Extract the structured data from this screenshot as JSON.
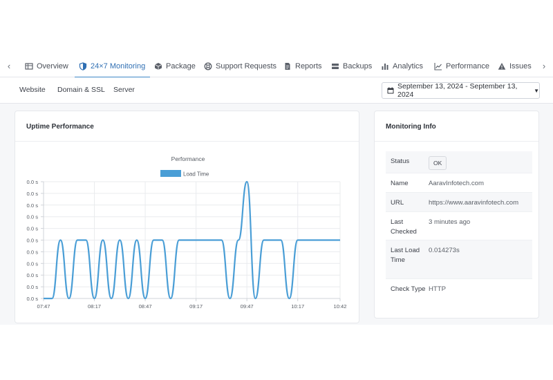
{
  "tabs": [
    {
      "label": "Overview",
      "icon": "grid-table-icon"
    },
    {
      "label": "24×7 Monitoring",
      "icon": "shield-icon",
      "active": true
    },
    {
      "label": "Package",
      "icon": "box-icon"
    },
    {
      "label": "Support Requests",
      "icon": "lifebuoy-icon"
    },
    {
      "label": "Reports",
      "icon": "document-icon"
    },
    {
      "label": "Backups",
      "icon": "drives-icon"
    },
    {
      "label": "Analytics",
      "icon": "bar-chart-icon"
    },
    {
      "label": "Performance",
      "icon": "line-chart-icon"
    },
    {
      "label": "Issues",
      "icon": "warning-icon"
    }
  ],
  "subnav": {
    "items": [
      "Website",
      "Domain & SSL",
      "Server"
    ],
    "date_range": "September 13, 2024 - September 13, 2024"
  },
  "uptime_card": {
    "title": "Uptime Performance"
  },
  "info_card": {
    "title": "Monitoring Info",
    "rows": [
      {
        "label": "Status",
        "value": "OK"
      },
      {
        "label": "Name",
        "value": "AaravInfotech.com"
      },
      {
        "label": "URL",
        "value": "https://www.aaravinfotech.com"
      },
      {
        "label": "Last Checked",
        "value": "3 minutes ago"
      },
      {
        "label": "Last Load Time",
        "value": "0.014273s"
      },
      {
        "label": "Check Type",
        "value": "HTTP"
      }
    ]
  },
  "colors": {
    "accent": "#3c86c6",
    "series": "#4a9ed6"
  },
  "chart_data": {
    "type": "line",
    "title": "Performance",
    "legend": "Load Time",
    "legend_position": "top",
    "xlabel": "",
    "ylabel": "",
    "x_tick_labels": [
      "07:47",
      "08:17",
      "08:47",
      "09:17",
      "09:47",
      "10:17",
      "10:42"
    ],
    "y_tick_labels": [
      "0.0 s",
      "0.0 s",
      "0.0 s",
      "0.0 s",
      "0.0 s",
      "0.0 s",
      "0.0 s",
      "0.0 s",
      "0.0 s",
      "0.0 s",
      "0.0 s"
    ],
    "grid": true,
    "series": [
      {
        "name": "Load Time",
        "x": [
          "07:47",
          "07:52",
          "07:57",
          "08:02",
          "08:07",
          "08:12",
          "08:17",
          "08:22",
          "08:27",
          "08:32",
          "08:37",
          "08:42",
          "08:47",
          "08:52",
          "08:57",
          "09:02",
          "09:07",
          "09:12",
          "09:17",
          "09:22",
          "09:27",
          "09:32",
          "09:37",
          "09:42",
          "09:47",
          "09:52",
          "09:57",
          "10:02",
          "10:07",
          "10:12",
          "10:17",
          "10:22",
          "10:27",
          "10:32",
          "10:37",
          "10:42"
        ],
        "values": [
          0,
          0,
          5,
          0,
          5,
          5,
          0,
          5,
          0,
          5,
          0,
          5,
          0,
          5,
          5,
          0,
          5,
          5,
          5,
          5,
          5,
          5,
          0,
          5,
          10,
          0,
          5,
          5,
          5,
          0,
          5,
          5,
          5,
          5,
          5,
          5
        ]
      }
    ]
  }
}
